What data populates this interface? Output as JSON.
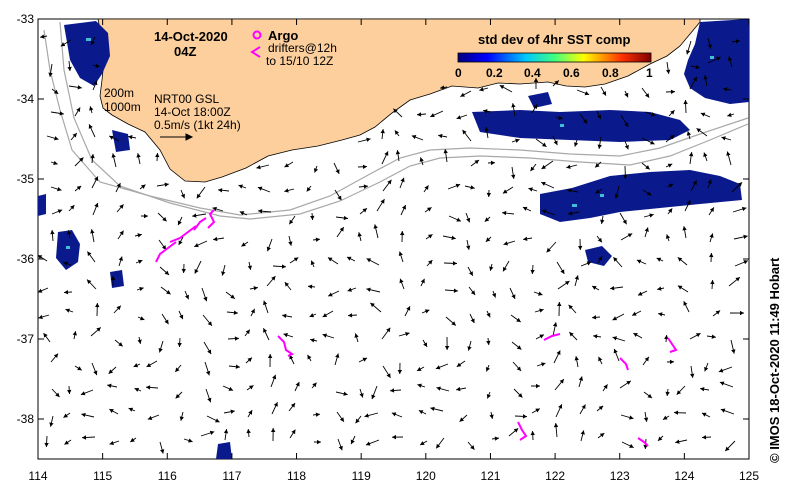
{
  "map": {
    "lon_ticks": [
      "114",
      "115",
      "116",
      "117",
      "118",
      "119",
      "120",
      "121",
      "122",
      "123",
      "124",
      "125"
    ],
    "lat_ticks": [
      "-33",
      "-34",
      "-35",
      "-36",
      "-37",
      "-38"
    ],
    "lon_range": [
      114,
      125
    ],
    "lat_range": [
      -38.5,
      -33
    ]
  },
  "header": {
    "date": "14-Oct-2020",
    "time": "04Z",
    "argo_label": "Argo",
    "drifters_label": "drifters@12h",
    "drifters_range": "to 15/10 12Z"
  },
  "colorbar": {
    "title": "std dev of 4hr SST comp",
    "labels": [
      "0",
      "0.2",
      "0.4",
      "0.6",
      "0.8",
      "1"
    ]
  },
  "isobaths": {
    "label_200": "200m",
    "label_1000": "1000m"
  },
  "currents": {
    "source": "NRT00 GSL",
    "time": "14-Oct 18:00Z",
    "scale": "0.5m/s (1kt 24h)"
  },
  "credit": "© IMOS 18-Oct-2020 11:49 Hobart",
  "colors": {
    "land": "#fccf9c",
    "sst_patch": "#0a1a8c",
    "drifter": "#ff00ff",
    "isobath": "#a8a8a8"
  }
}
